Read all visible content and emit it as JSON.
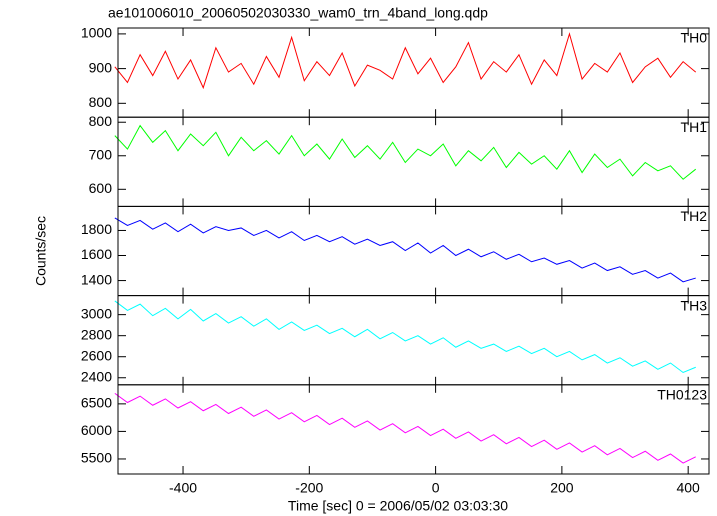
{
  "chart_data": {
    "type": "line",
    "title": "ae101006010_20060502030330_wam0_trn_4band_long.qdp",
    "xlabel": "Time [sec] 0 = 2006/05/02 03:03:30",
    "ylabel": "Counts/sec",
    "xlim": [
      -503,
      433
    ],
    "xticks": [
      -400,
      -200,
      0,
      200,
      400
    ],
    "x": [
      -508,
      -488,
      -468,
      -448,
      -428,
      -408,
      -388,
      -368,
      -348,
      -328,
      -308,
      -288,
      -268,
      -248,
      -228,
      -208,
      -188,
      -168,
      -148,
      -128,
      -108,
      -88,
      -68,
      -48,
      -28,
      -8,
      12,
      32,
      52,
      72,
      92,
      112,
      132,
      152,
      172,
      192,
      212,
      232,
      252,
      272,
      292,
      312,
      332,
      352,
      372,
      392,
      412
    ],
    "series": [
      {
        "name": "TH0",
        "color": "#ff0000",
        "ylim": [
          760,
          1017
        ],
        "yticks": [
          800,
          900,
          1000
        ],
        "values": [
          905,
          860,
          940,
          880,
          950,
          870,
          925,
          845,
          960,
          890,
          915,
          855,
          935,
          875,
          990,
          865,
          920,
          880,
          945,
          850,
          910,
          895,
          870,
          960,
          885,
          930,
          860,
          905,
          975,
          870,
          920,
          890,
          940,
          855,
          925,
          880,
          1000,
          870,
          915,
          890,
          945,
          860,
          905,
          930,
          875,
          920,
          890
        ]
      },
      {
        "name": "TH1",
        "color": "#00ff00",
        "ylim": [
          549,
          815
        ],
        "yticks": [
          600,
          700,
          800
        ],
        "values": [
          760,
          720,
          790,
          740,
          775,
          715,
          765,
          730,
          770,
          700,
          755,
          715,
          745,
          705,
          760,
          700,
          735,
          690,
          750,
          695,
          730,
          690,
          740,
          680,
          720,
          700,
          735,
          670,
          715,
          685,
          725,
          665,
          710,
          675,
          700,
          660,
          715,
          650,
          705,
          665,
          690,
          640,
          680,
          655,
          670,
          630,
          660
        ]
      },
      {
        "name": "TH2",
        "color": "#0000ff",
        "ylim": [
          1280,
          1992
        ],
        "yticks": [
          1400,
          1600,
          1800
        ],
        "values": [
          1900,
          1840,
          1880,
          1810,
          1860,
          1790,
          1850,
          1780,
          1830,
          1800,
          1820,
          1760,
          1800,
          1740,
          1790,
          1720,
          1760,
          1710,
          1750,
          1690,
          1730,
          1680,
          1710,
          1640,
          1700,
          1620,
          1680,
          1600,
          1650,
          1590,
          1630,
          1570,
          1610,
          1550,
          1580,
          1530,
          1560,
          1500,
          1540,
          1480,
          1510,
          1450,
          1480,
          1420,
          1460,
          1390,
          1420
        ]
      },
      {
        "name": "TH3",
        "color": "#00ffff",
        "ylim": [
          2333,
          3181
        ],
        "yticks": [
          2400,
          2600,
          2800,
          3000
        ],
        "values": [
          3130,
          3040,
          3100,
          2990,
          3060,
          2960,
          3050,
          2940,
          3010,
          2920,
          2980,
          2890,
          2960,
          2860,
          2930,
          2850,
          2900,
          2820,
          2870,
          2790,
          2860,
          2770,
          2830,
          2750,
          2800,
          2720,
          2780,
          2690,
          2750,
          2680,
          2720,
          2650,
          2700,
          2630,
          2680,
          2600,
          2650,
          2570,
          2620,
          2540,
          2590,
          2510,
          2560,
          2480,
          2540,
          2450,
          2500
        ]
      },
      {
        "name": "TH0123",
        "color": "#ff00ff",
        "ylim": [
          5227,
          6846
        ],
        "yticks": [
          5500,
          6000,
          6500
        ],
        "values": [
          6690,
          6525,
          6640,
          6475,
          6590,
          6425,
          6540,
          6375,
          6490,
          6325,
          6440,
          6275,
          6390,
          6225,
          6340,
          6175,
          6290,
          6125,
          6240,
          6075,
          6190,
          6025,
          6140,
          5975,
          6090,
          5925,
          6040,
          5875,
          5990,
          5825,
          5940,
          5775,
          5890,
          5725,
          5840,
          5675,
          5790,
          5625,
          5740,
          5575,
          5690,
          5525,
          5640,
          5475,
          5590,
          5425,
          5540
        ]
      }
    ]
  }
}
